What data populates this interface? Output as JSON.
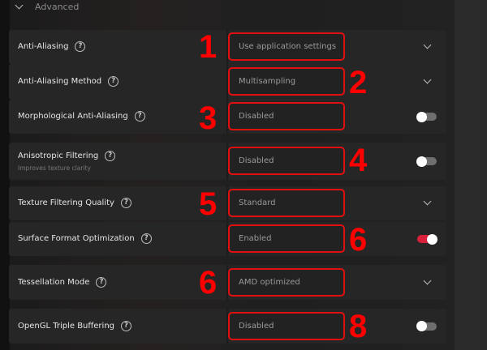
{
  "section": {
    "title": "Advanced"
  },
  "settings": [
    {
      "label": "Anti-Aliasing",
      "value": "Use application settings",
      "control": "dropdown",
      "annotation": "1"
    },
    {
      "label": "Anti-Aliasing Method",
      "value": "Multisampling",
      "control": "dropdown",
      "annotation": "2"
    },
    {
      "label": "Morphological Anti-Aliasing",
      "value": "Disabled",
      "control": "toggle",
      "on": false,
      "annotation": "3"
    },
    {
      "label": "Anisotropic Filtering",
      "sublabel": "Improves texture clarity",
      "value": "Disabled",
      "control": "toggle",
      "on": false,
      "annotation": "4"
    },
    {
      "label": "Texture Filtering Quality",
      "value": "Standard",
      "control": "dropdown",
      "annotation": "5"
    },
    {
      "label": "Surface Format Optimization",
      "value": "Enabled",
      "control": "toggle",
      "on": true,
      "annotation": "6"
    },
    {
      "label": "Tessellation Mode",
      "value": "AMD optimized",
      "control": "dropdown",
      "annotation": "6"
    },
    {
      "label": "OpenGL Triple Buffering",
      "value": "Disabled",
      "control": "toggle",
      "on": false,
      "annotation": "8"
    }
  ],
  "colors": {
    "annotation": "#ff0000",
    "toggle_on": "#d8203a",
    "highlight_box": "#e01010"
  }
}
